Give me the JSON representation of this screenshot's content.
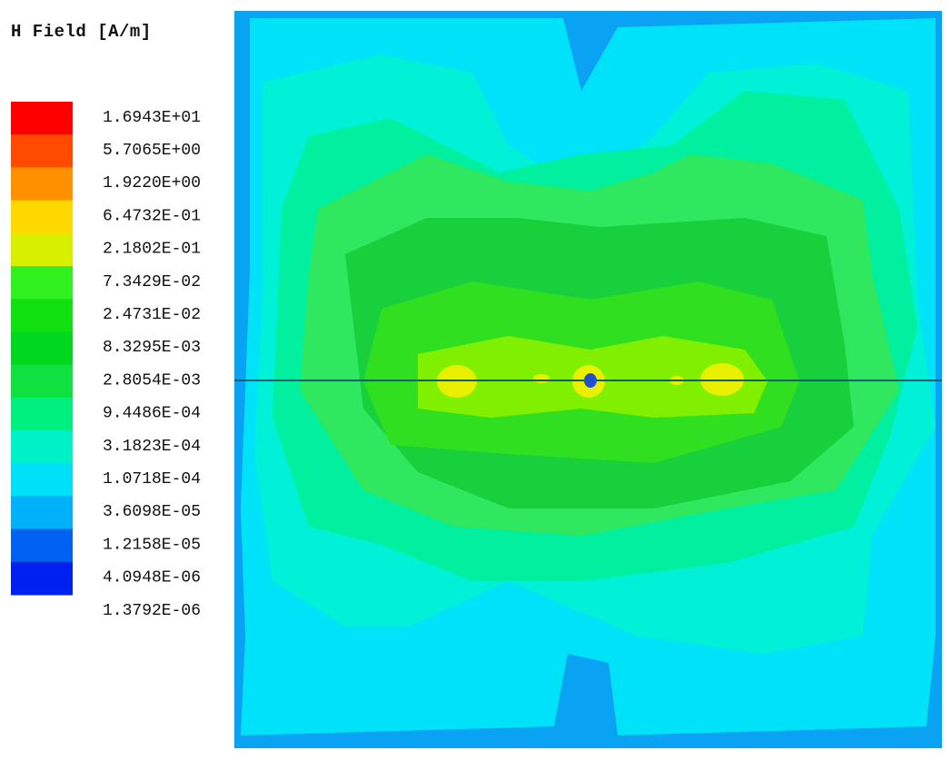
{
  "title": "H Field [A/m]",
  "legend": {
    "labels": [
      "1.6943E+01",
      "5.7065E+00",
      "1.9220E+00",
      "6.4732E-01",
      "2.1802E-01",
      "7.3429E-02",
      "2.4731E-02",
      "8.3295E-03",
      "2.8054E-03",
      "9.4486E-04",
      "3.1823E-04",
      "1.0718E-04",
      "3.6098E-05",
      "1.2158E-05",
      "4.0948E-06",
      "1.3792E-06"
    ],
    "colors": [
      "#ff0000",
      "#ff4a00",
      "#ff9000",
      "#ffd800",
      "#d8f000",
      "#30f020",
      "#10e010",
      "#00d820",
      "#10e040",
      "#00f080",
      "#00f0c8",
      "#00e0f8",
      "#00b0f8",
      "#0060f0",
      "#0020f0"
    ]
  }
}
